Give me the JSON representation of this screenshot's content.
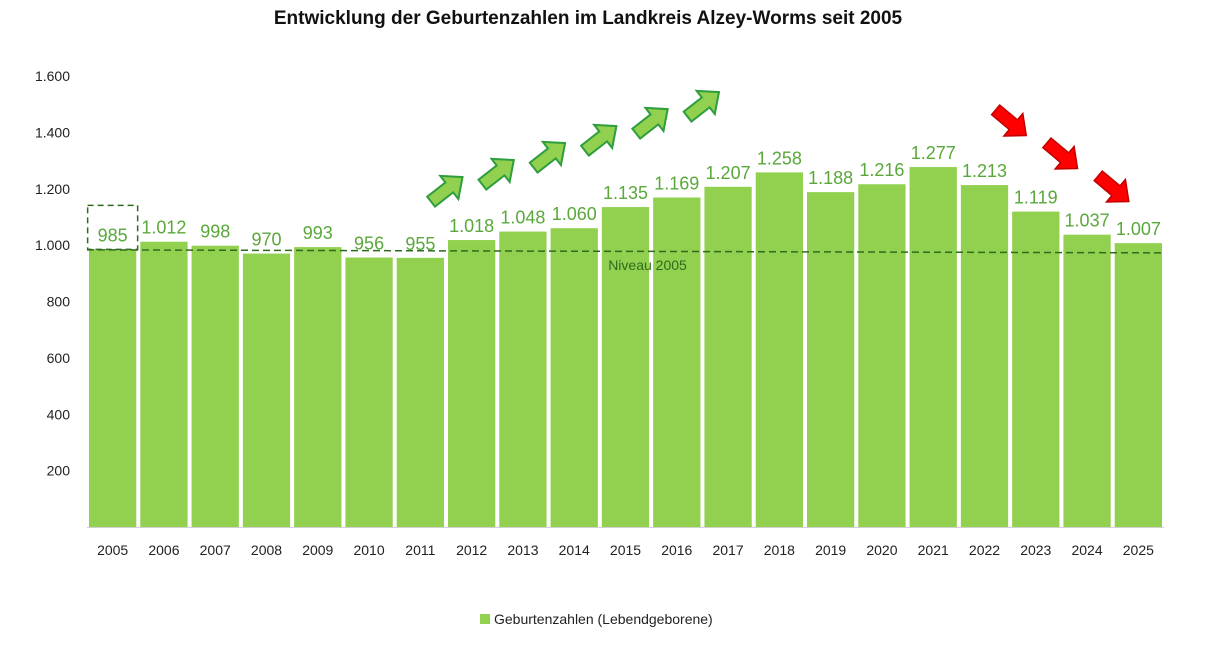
{
  "chart_data": {
    "type": "bar",
    "title": "Entwicklung der Geburtenzahlen im Landkreis Alzey-Worms seit 2005",
    "categories": [
      "2005",
      "2006",
      "2007",
      "2008",
      "2009",
      "2010",
      "2011",
      "2012",
      "2013",
      "2014",
      "2015",
      "2016",
      "2017",
      "2018",
      "2019",
      "2020",
      "2021",
      "2022",
      "2023",
      "2024",
      "2025"
    ],
    "series": [
      {
        "name": "Geburtenzahlen (Lebendgeborene)",
        "values": [
          985,
          1012,
          998,
          970,
          993,
          956,
          955,
          1018,
          1048,
          1060,
          1135,
          1169,
          1207,
          1258,
          1188,
          1216,
          1277,
          1213,
          1119,
          1037,
          1007
        ],
        "labels": [
          "985",
          "1.012",
          "998",
          "970",
          "993",
          "956",
          "955",
          "1.018",
          "1.048",
          "1.060",
          "1.135",
          "1.169",
          "1.207",
          "1.258",
          "1.188",
          "1.216",
          "1.277",
          "1.213",
          "1.119",
          "1.037",
          "1.007"
        ]
      }
    ],
    "ylim": [
      0,
      1600
    ],
    "yticks": [
      200,
      400,
      600,
      800,
      1000,
      1200,
      1400,
      1600
    ],
    "ytick_labels": [
      "200",
      "400",
      "600",
      "800",
      "1.000",
      "1.200",
      "1.400",
      "1.600"
    ],
    "xlabel": "",
    "ylabel": "",
    "grid": false,
    "legend_position": "bottom",
    "reference_line": {
      "label": "Niveau 2005",
      "value": 985,
      "style": "dashed"
    },
    "up_arrows": [
      "2011",
      "2012",
      "2013",
      "2014",
      "2015",
      "2016"
    ],
    "down_arrows": [
      "2022",
      "2023",
      "2024"
    ],
    "highlight_category": "2005"
  },
  "colors": {
    "bar": "#92d050",
    "label": "#5aa83a",
    "up_arrow_fill": "#92d050",
    "up_arrow_stroke": "#2e9e3e",
    "down_arrow_fill": "#ff0000",
    "down_arrow_stroke": "#c00000",
    "reference_line": "#2f6b1e"
  }
}
